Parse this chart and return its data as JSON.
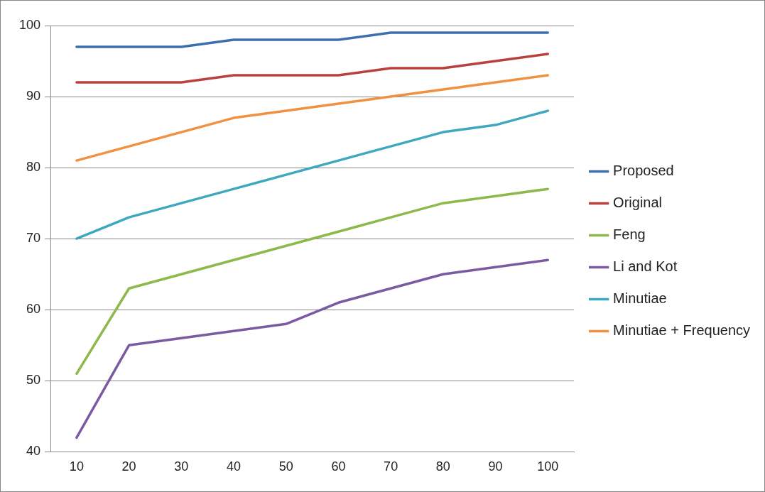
{
  "chart_data": {
    "type": "line",
    "categories": [
      "10",
      "20",
      "30",
      "40",
      "50",
      "60",
      "70",
      "80",
      "90",
      "100"
    ],
    "series": [
      {
        "name": "Proposed",
        "color": "#3d6fae",
        "values": [
          97,
          97,
          97,
          98,
          98,
          98,
          99,
          99,
          99,
          99
        ]
      },
      {
        "name": "Original",
        "color": "#b8413d",
        "values": [
          92,
          92,
          92,
          93,
          93,
          93,
          94,
          94,
          95,
          96
        ]
      },
      {
        "name": "Feng",
        "color": "#8db84a",
        "values": [
          51,
          63,
          65,
          67,
          69,
          71,
          73,
          75,
          76,
          77
        ]
      },
      {
        "name": "Li and Kot",
        "color": "#7a5aa0",
        "values": [
          42,
          55,
          56,
          57,
          58,
          61,
          63,
          65,
          66,
          67
        ]
      },
      {
        "name": "Minutiae",
        "color": "#3fa8c0",
        "values": [
          70,
          73,
          75,
          77,
          79,
          81,
          83,
          85,
          86,
          88
        ]
      },
      {
        "name": "Minutiae + Frequency",
        "color": "#f0913f",
        "values": [
          81,
          83,
          85,
          87,
          88,
          89,
          90,
          91,
          92,
          93
        ]
      }
    ],
    "ylim": [
      40,
      100
    ],
    "yticks": [
      40,
      50,
      60,
      70,
      80,
      90,
      100
    ],
    "grid": "y",
    "legend": "right",
    "marker": "none",
    "line_style": "solid"
  }
}
